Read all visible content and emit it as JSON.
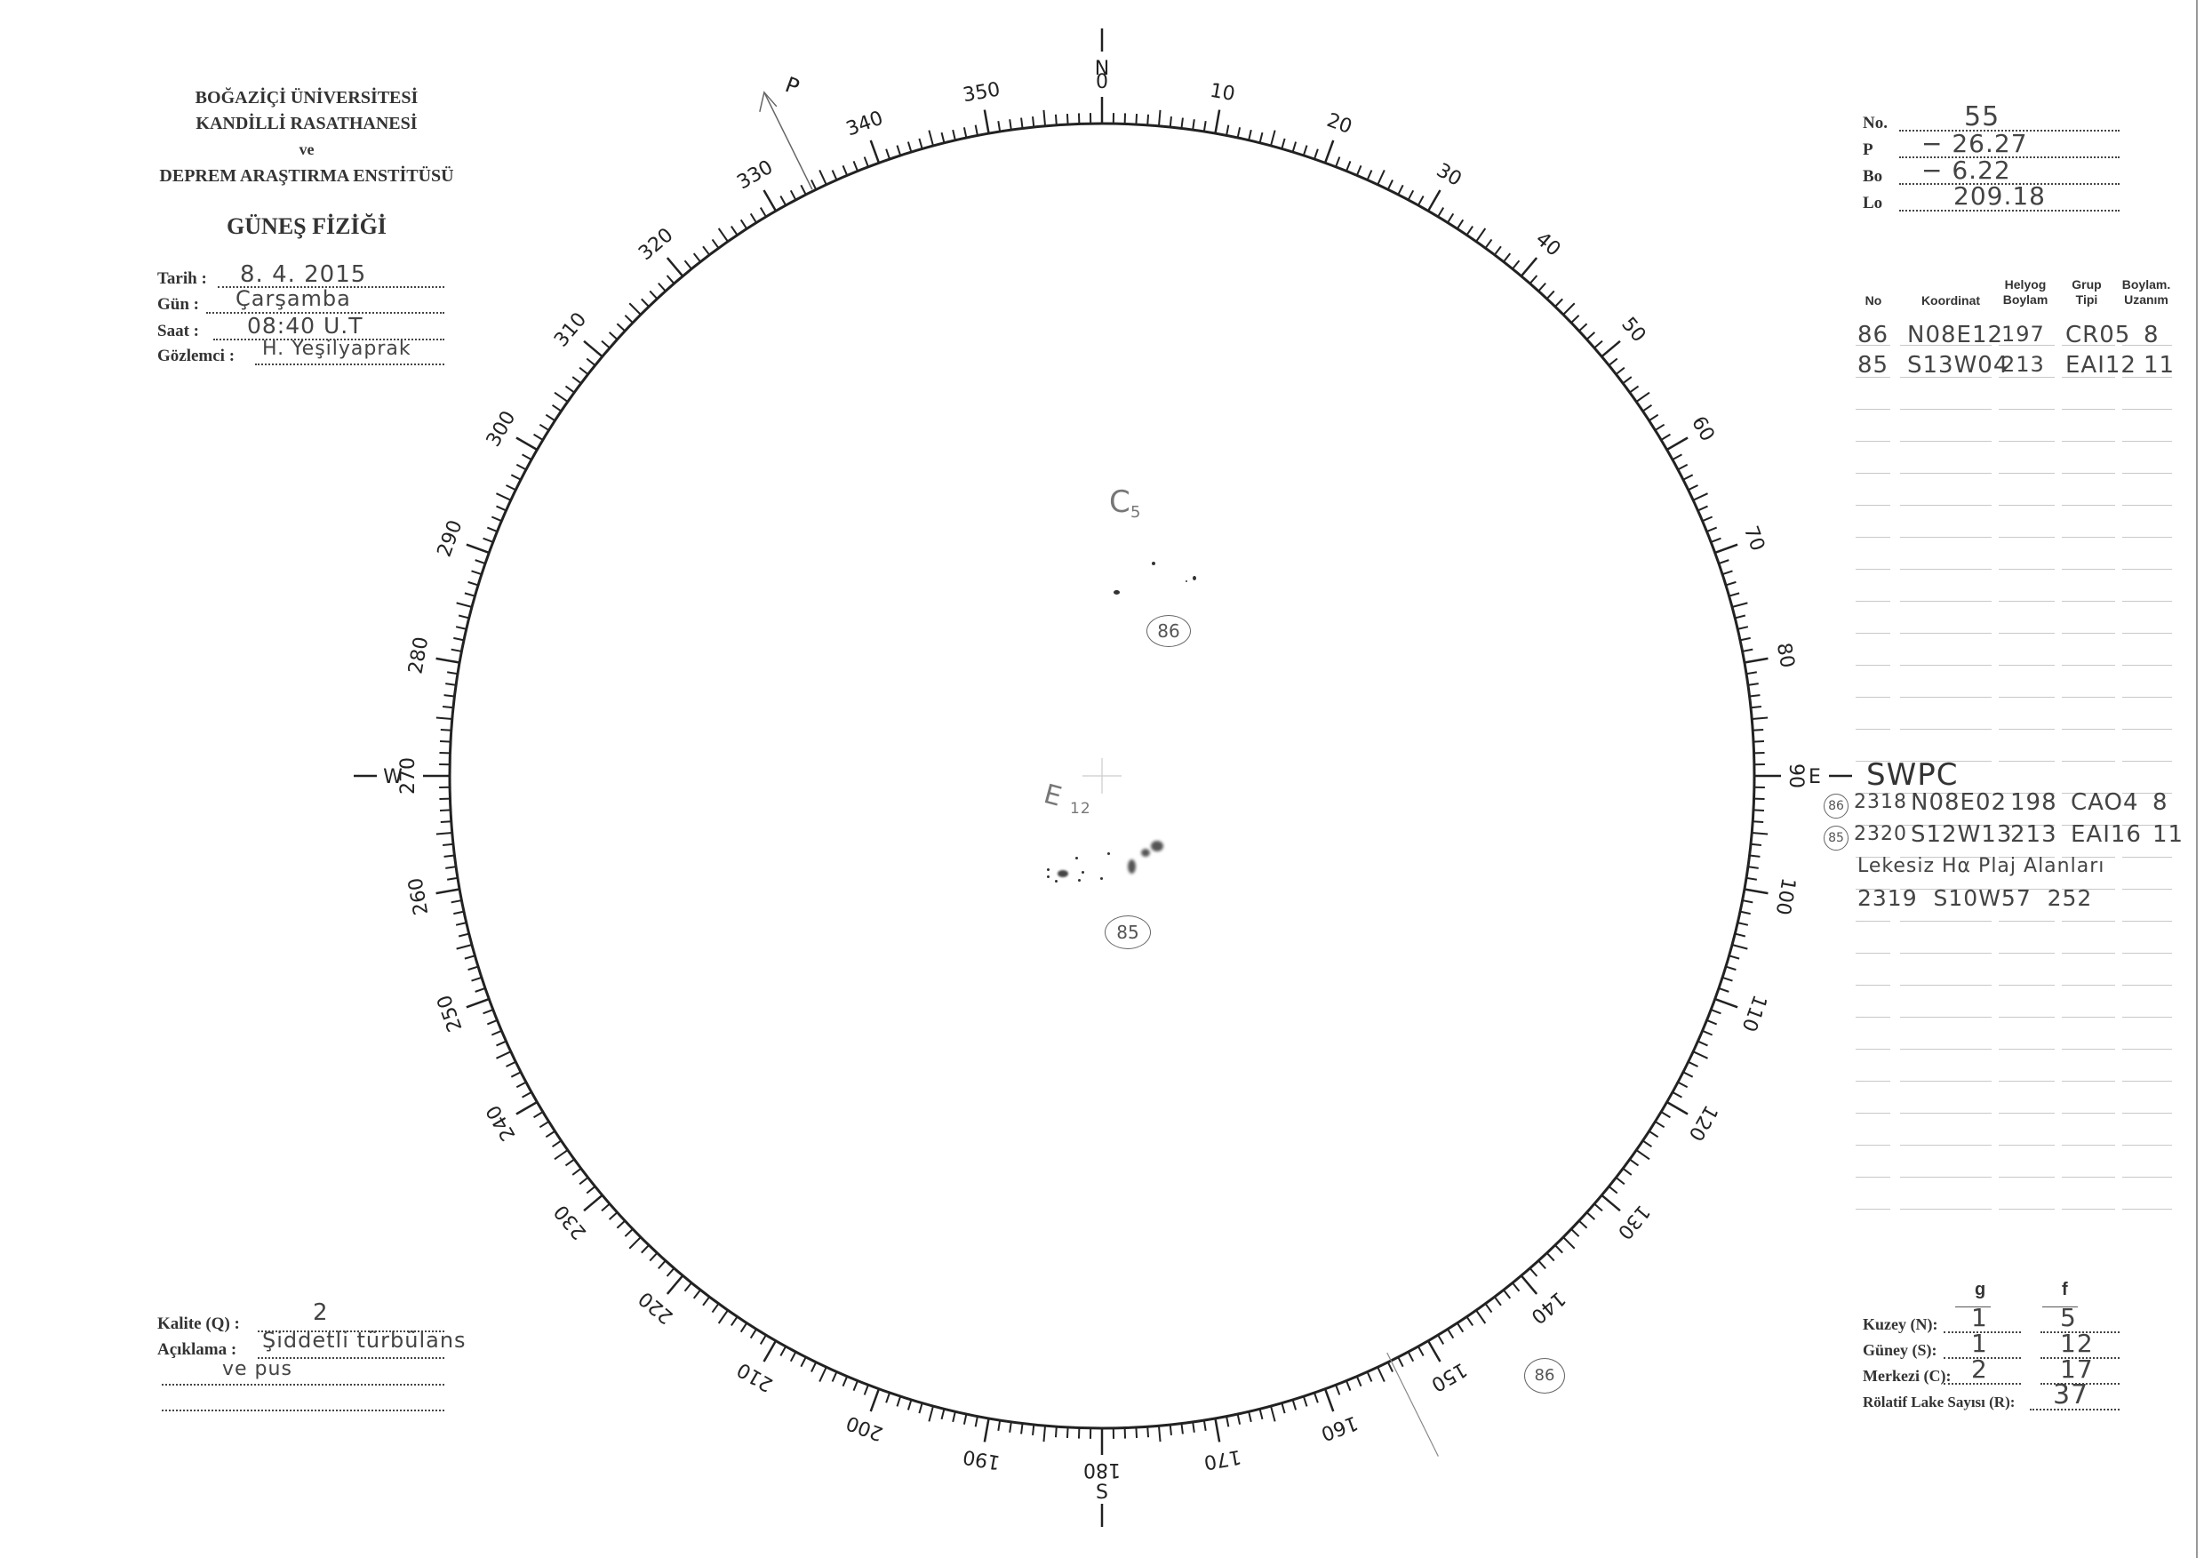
{
  "header": {
    "institution_lines": [
      "BOĞAZİÇİ ÜNİVERSİTESİ",
      "KANDİLLİ RASATHANESİ",
      "ve",
      "DEPREM ARAŞTIRMA ENSTİTÜSÜ"
    ],
    "title": "GÜNEŞ FİZİĞİ"
  },
  "observation": {
    "date_label": "Tarih :",
    "date_value": "8. 4. 2015",
    "day_label": "Gün :",
    "day_value": "Çarşamba",
    "time_label": "Saat :",
    "time_value": "08:40 U.T",
    "observer_label": "Gözlemci :",
    "observer_value": "H. Yeşilyaprak"
  },
  "parameters": {
    "no_label": "No.",
    "no_value": "55",
    "p_label": "P",
    "p_value": "− 26.27",
    "bo_label": "Bo",
    "bo_value": "− 6.22",
    "lo_label": "Lo",
    "lo_value": "209.18"
  },
  "groups_table": {
    "headers": [
      "No",
      "Koordinat",
      "Helyog\nBoylam",
      "Grup\nTipi",
      "Boylam.\nUzanım"
    ],
    "rows": [
      [
        "86",
        "N08E12",
        "197",
        "CR05",
        "8"
      ],
      [
        "85",
        "S13W04",
        "213",
        "EAI12",
        "11"
      ]
    ]
  },
  "swpc": {
    "title": "SWPC",
    "rows": [
      {
        "group": "86",
        "region": "2318",
        "coord": "N08E02",
        "lon": "198",
        "type": "CAO4",
        "extent": "8"
      },
      {
        "group": "85",
        "region": "2320",
        "coord": "S12W13",
        "lon": "213",
        "type": "EAI16",
        "extent": "11"
      }
    ],
    "plage_title": "Lekesiz Hα Plaj Alanları",
    "plage_row": "2319  S10W57  252"
  },
  "quality": {
    "kalite_label": "Kalite (Q) :",
    "kalite_value": "2",
    "aciklama_label": "Açıklama :",
    "aciklama_value_1": "Şiddetli türbülans",
    "aciklama_value_2": "ve pus"
  },
  "counts": {
    "g_header": "g",
    "f_header": "f",
    "rows": [
      {
        "label": "Kuzey (N):",
        "g": "1",
        "f": "5"
      },
      {
        "label": "Güney (S):",
        "g": "1",
        "f": "12"
      },
      {
        "label": "Merkezi (C):",
        "g": "2",
        "f": "17"
      }
    ],
    "relative_label": "Rölatif Lake Sayısı (R):",
    "relative_value": "37"
  },
  "dial": {
    "labels": [
      "0",
      "10",
      "20",
      "30",
      "40",
      "50",
      "60",
      "70",
      "80",
      "90",
      "100",
      "110",
      "120",
      "130",
      "140",
      "150",
      "160",
      "170",
      "180",
      "190",
      "200",
      "210",
      "220",
      "230",
      "240",
      "250",
      "260",
      "270",
      "280",
      "290",
      "300",
      "310",
      "320",
      "330",
      "340",
      "350"
    ],
    "north": "N",
    "east": "E",
    "south": "S",
    "west": "W",
    "p_axis_label": "P",
    "p_angle_deg": 333.7
  },
  "disk_annotations": {
    "group86_class": "C",
    "group86_class_sub": "5",
    "group86_id": "86",
    "group85_class": "E",
    "group85_class_sub": "12",
    "group85_id": "85",
    "limb_group_id": "86"
  }
}
